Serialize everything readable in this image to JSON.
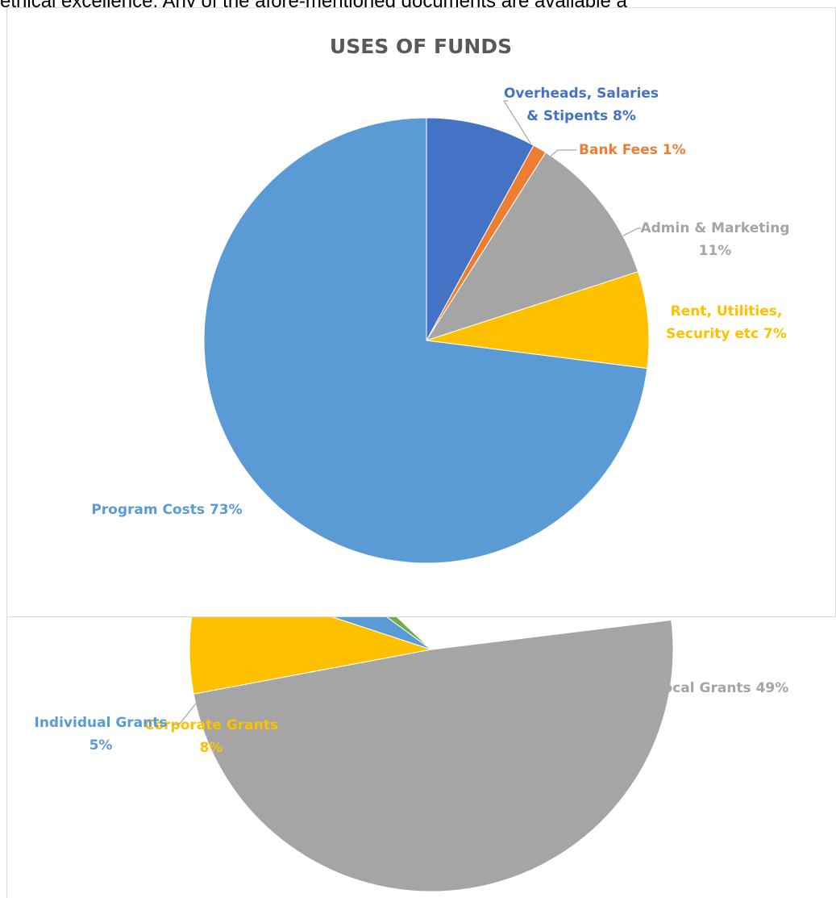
{
  "document": {
    "cropped_text_line": "ethical excellence. Any of the afore-mentioned documents are available a"
  },
  "chart_data": [
    {
      "type": "pie",
      "title": "USES OF FUNDS",
      "start_angle_deg": 0,
      "direction": "clockwise",
      "slices": [
        {
          "name": "Overheads, Salaries & Stipents",
          "value": 8,
          "label_lines": [
            "Overheads, Salaries",
            "& Stipents 8%"
          ],
          "color": "#4472C4"
        },
        {
          "name": "Bank Fees",
          "value": 1,
          "label_lines": [
            "Bank Fees 1%"
          ],
          "color": "#ED7D31"
        },
        {
          "name": "Admin & Marketing",
          "value": 11,
          "label_lines": [
            "Admin & Marketing",
            "11%"
          ],
          "color": "#A5A5A5"
        },
        {
          "name": "Rent, Utilities, Security etc",
          "value": 7,
          "label_lines": [
            "Rent, Utilities,",
            "Security etc 7%"
          ],
          "color": "#FFC000"
        },
        {
          "name": "Program Costs",
          "value": 73,
          "label_lines": [
            "Program Costs 73%"
          ],
          "color": "#5B9BD5"
        }
      ]
    },
    {
      "type": "pie",
      "title": "",
      "cropped": true,
      "slices": [
        {
          "name": "Local Grants",
          "value": 49,
          "label_lines": [
            "Local Grants 49%"
          ],
          "color": "#A5A5A5"
        },
        {
          "name": "Corporate Grants",
          "value": 8,
          "label_lines": [
            "Corporate Grants",
            "8%"
          ],
          "color": "#FFC000"
        },
        {
          "name": "Individual Grants",
          "value": 5,
          "label_lines": [
            "Individual Grants",
            "5%"
          ],
          "color": "#5B9BD5"
        },
        {
          "name": "Other (unlabeled)",
          "value": 2,
          "label_lines": [],
          "color": "#70AD47"
        }
      ]
    }
  ]
}
